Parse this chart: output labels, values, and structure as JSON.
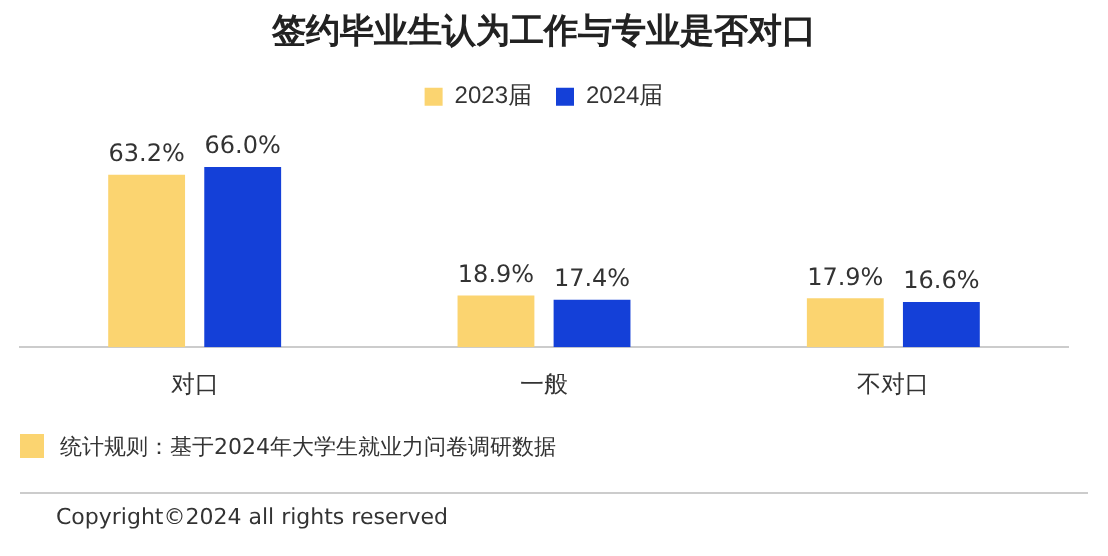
{
  "chart_data": {
    "type": "bar",
    "title": "签约毕业生认为工作与专业是否对口",
    "categories": [
      "对口",
      "一般",
      "不对口"
    ],
    "series": [
      {
        "name": "2023届",
        "color": "#fbd470",
        "values": [
          63.2,
          18.9,
          17.9
        ],
        "value_labels": [
          "63.2%",
          "18.9%",
          "17.9%"
        ]
      },
      {
        "name": "2024届",
        "color": "#1440d8",
        "values": [
          66.0,
          17.4,
          16.6
        ],
        "value_labels": [
          "66.0%",
          "17.4%",
          "16.6%"
        ]
      }
    ],
    "legend": "top right",
    "grid": false,
    "tick_labels": "x",
    "annotations": [
      "统计规则：基于2024年大学生就业力问卷调研数据",
      "Copyright©2024 all rights reserved"
    ]
  }
}
